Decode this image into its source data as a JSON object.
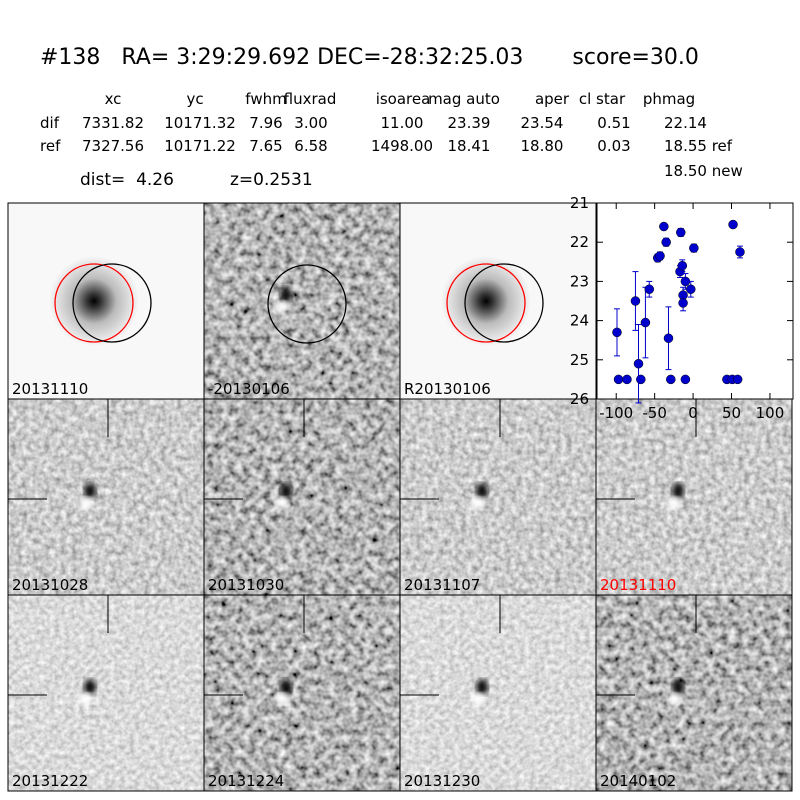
{
  "header": {
    "title": "#138   RA= 3:29:29.692 DEC=-28:32:25.03       score=30.0"
  },
  "table": {
    "columns": [
      "xc",
      "yc",
      "fwhm",
      "fluxrad",
      "isoarea",
      "mag auto",
      "aper",
      "cl star",
      "phmag"
    ],
    "rows": [
      [
        "dif",
        "7331.82",
        "10171.32",
        "7.96",
        "3.00",
        "11.00",
        "23.39",
        "23.54",
        "0.51",
        "22.14"
      ],
      [
        "ref",
        "7327.56",
        "10171.22",
        "7.65",
        "6.58",
        "1498.00",
        "18.41",
        "18.80",
        "0.03",
        "18.55 ref"
      ]
    ],
    "note": "18.50 new"
  },
  "summary": {
    "dist": "dist=  4.26",
    "z": "z=0.2531"
  },
  "panels": [
    {
      "label": "20131110"
    },
    {
      "label": "-20130106"
    },
    {
      "label": "R20130106"
    },
    {
      "label": "20131028"
    },
    {
      "label": "20131030"
    },
    {
      "label": "20131107"
    },
    {
      "label": "20131110",
      "color": "#ff0000"
    },
    {
      "label": "20131222"
    },
    {
      "label": "20131224"
    },
    {
      "label": "20131230"
    },
    {
      "label": "20140102"
    }
  ],
  "chart_data": {
    "type": "scatter",
    "color": "#0000cc",
    "x": [
      -99,
      -97,
      -86,
      -75,
      -71,
      -68,
      -62,
      -57,
      -46,
      -43,
      -38,
      -35,
      -32,
      -29,
      -17,
      -16,
      -14,
      -13,
      -13,
      -10,
      -10,
      -3,
      1,
      44,
      51,
      52,
      58,
      61
    ],
    "values": [
      24.3,
      25.5,
      25.5,
      23.5,
      25.1,
      25.5,
      24.05,
      23.2,
      22.4,
      22.35,
      21.6,
      22.0,
      24.45,
      25.5,
      22.75,
      21.75,
      22.6,
      23.35,
      23.55,
      23.0,
      25.5,
      23.2,
      22.15,
      25.5,
      25.5,
      21.55,
      25.5,
      22.25
    ],
    "errors": [
      0.6,
      0,
      0,
      0.75,
      1.0,
      0,
      0.9,
      0.2,
      0.1,
      0.1,
      0,
      0.1,
      0.8,
      0,
      0.15,
      0.1,
      0.15,
      0.2,
      0.2,
      0.2,
      0,
      0.2,
      0.1,
      0,
      0,
      0.05,
      0,
      0.15
    ],
    "xlim": [
      -125,
      130
    ],
    "xticks": [
      -100,
      -50,
      0,
      50,
      100
    ],
    "ylim": [
      21,
      26
    ],
    "y_inverted": true,
    "yticks": [
      21,
      22,
      23,
      24,
      25,
      26
    ]
  }
}
